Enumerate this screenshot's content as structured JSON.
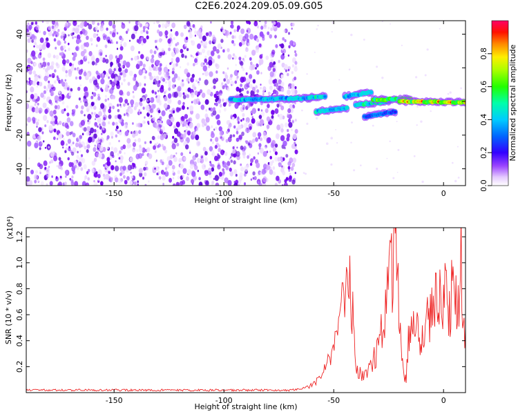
{
  "title": "C2E6.2024.209.05.09.G05",
  "colors": {
    "snr_line": "#ee2222",
    "scatter_purple": "#7700ee",
    "axis": "#000000"
  },
  "chart_data": [
    {
      "type": "heatmap",
      "xlabel": "Height of straight line (km)",
      "ylabel": "Frequency (Hz)",
      "xlim": [
        -190,
        10
      ],
      "ylim": [
        -50,
        48
      ],
      "xticks": [
        -150,
        -100,
        -50,
        0
      ],
      "yticks": [
        -40,
        -20,
        0,
        20,
        40
      ],
      "colorbar": {
        "label": "Normalized spectral amplitude",
        "range": [
          0,
          1
        ],
        "ticks": [
          0.0,
          0.2,
          0.4,
          0.6,
          0.8
        ],
        "colormap": "rainbow (purple-blue-cyan-green-yellow-red-pink)"
      },
      "noise_region_x": [
        -190,
        -67
      ],
      "ridges": [
        {
          "x": [
            -97,
            -60
          ],
          "y": [
            1.0,
            2.0
          ],
          "amplitude": 0.45
        },
        {
          "x": [
            -62,
            -54
          ],
          "y": [
            2.5,
            3.0
          ],
          "amplitude": 0.55
        },
        {
          "x": [
            -58,
            -44
          ],
          "y": [
            -6.0,
            -4.0
          ],
          "amplitude": 0.5
        },
        {
          "x": [
            -45,
            -33
          ],
          "y": [
            3.0,
            5.5
          ],
          "amplitude": 0.45
        },
        {
          "x": [
            -40,
            -25
          ],
          "y": [
            -2.0,
            0.0
          ],
          "amplitude": 0.55
        },
        {
          "x": [
            -36,
            -22
          ],
          "y": [
            -9.0,
            -6.0
          ],
          "amplitude": 0.3
        },
        {
          "x": [
            -32,
            -15
          ],
          "y": [
            1.0,
            1.5
          ],
          "amplitude": 0.7
        },
        {
          "x": [
            -20,
            10
          ],
          "y": [
            0.0,
            -0.5
          ],
          "amplitude": 0.95
        }
      ]
    },
    {
      "type": "line",
      "xlabel": "Height of straight line (km)",
      "ylabel": "SNR (10 * v/v)",
      "y_multiplier": "(x10⁴)",
      "xlim": [
        -190,
        10
      ],
      "ylim": [
        0,
        1.27
      ],
      "xticks": [
        -150,
        -100,
        -50,
        0
      ],
      "yticks": [
        0.2,
        0.4,
        0.6,
        0.8,
        1.0,
        1.2
      ],
      "series": [
        {
          "x": [
            -190,
            -180,
            -170,
            -160,
            -150,
            -140,
            -130,
            -120,
            -110,
            -100,
            -90,
            -80,
            -70,
            -65,
            -60,
            -57,
            -55,
            -53,
            -51,
            -49,
            -47,
            -45,
            -43,
            -42,
            -41,
            -40,
            -38,
            -36,
            -34,
            -32,
            -30,
            -28,
            -26,
            -24,
            -23,
            -22,
            -21,
            -20,
            -19,
            -18,
            -17,
            -16,
            -15,
            -14,
            -13,
            -12,
            -11,
            -10,
            -9,
            -8,
            -7,
            -6,
            -5,
            -4,
            -3,
            -2,
            -1,
            0,
            1,
            2,
            3,
            4,
            5,
            6,
            7,
            8,
            9,
            10
          ],
          "y": [
            0.02,
            0.02,
            0.02,
            0.02,
            0.02,
            0.02,
            0.02,
            0.02,
            0.02,
            0.02,
            0.02,
            0.02,
            0.02,
            0.03,
            0.06,
            0.1,
            0.15,
            0.22,
            0.3,
            0.45,
            0.6,
            0.72,
            0.98,
            0.78,
            0.55,
            0.2,
            0.15,
            0.12,
            0.18,
            0.25,
            0.35,
            0.55,
            0.7,
            0.95,
            1.02,
            1.26,
            0.9,
            0.48,
            0.3,
            0.12,
            0.1,
            0.45,
            0.6,
            0.58,
            0.55,
            0.52,
            0.48,
            0.45,
            0.5,
            0.58,
            0.55,
            0.6,
            0.66,
            0.8,
            0.7,
            0.72,
            0.76,
            0.78,
            0.82,
            0.7,
            0.68,
            0.85,
            0.75,
            0.7,
            0.82,
            1.08,
            0.6,
            0.5
          ]
        }
      ]
    }
  ]
}
